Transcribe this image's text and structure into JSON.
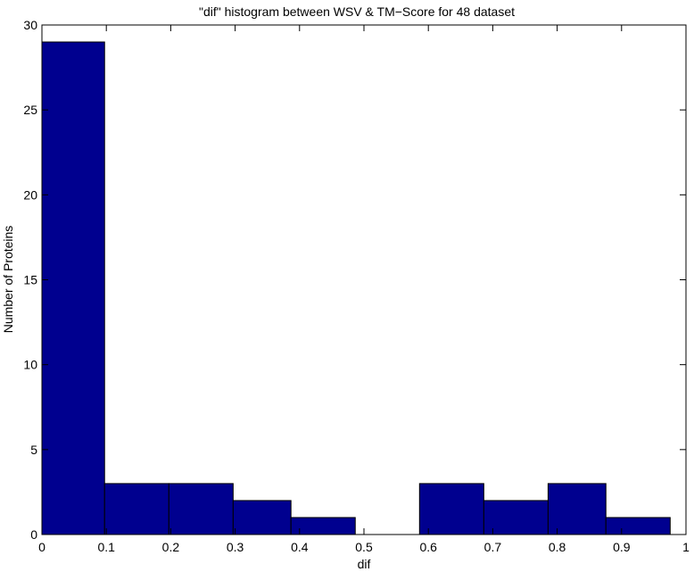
{
  "chart_data": {
    "type": "bar",
    "title": "\"dif\" histogram between WSV & TM−Score for 48 dataset",
    "xlabel": "dif",
    "ylabel": "Number of Proteins",
    "xlim": [
      0,
      1
    ],
    "ylim": [
      0,
      30
    ],
    "xticks": [
      0,
      0.1,
      0.2,
      0.3,
      0.4,
      0.5,
      0.6,
      0.7,
      0.8,
      0.9,
      1
    ],
    "xtick_labels": [
      "0",
      "0.1",
      "0.2",
      "0.3",
      "0.4",
      "0.5",
      "0.6",
      "0.7",
      "0.8",
      "0.9",
      "1"
    ],
    "yticks": [
      0,
      5,
      10,
      15,
      20,
      25,
      30
    ],
    "ytick_labels": [
      "0",
      "5",
      "10",
      "15",
      "20",
      "25",
      "30"
    ],
    "grid": false,
    "bar_color": "#00008f",
    "bins": [
      {
        "x0": 0.0,
        "x1": 0.0973,
        "count": 29
      },
      {
        "x0": 0.0973,
        "x1": 0.1971,
        "count": 3
      },
      {
        "x0": 0.1971,
        "x1": 0.2969,
        "count": 3
      },
      {
        "x0": 0.2969,
        "x1": 0.3867,
        "count": 2
      },
      {
        "x0": 0.3867,
        "x1": 0.4865,
        "count": 1
      },
      {
        "x0": 0.4865,
        "x1": 0.5863,
        "count": 0
      },
      {
        "x0": 0.5863,
        "x1": 0.6861,
        "count": 3
      },
      {
        "x0": 0.6861,
        "x1": 0.7859,
        "count": 2
      },
      {
        "x0": 0.7859,
        "x1": 0.8757,
        "count": 3
      },
      {
        "x0": 0.8757,
        "x1": 0.9755,
        "count": 1
      }
    ]
  }
}
